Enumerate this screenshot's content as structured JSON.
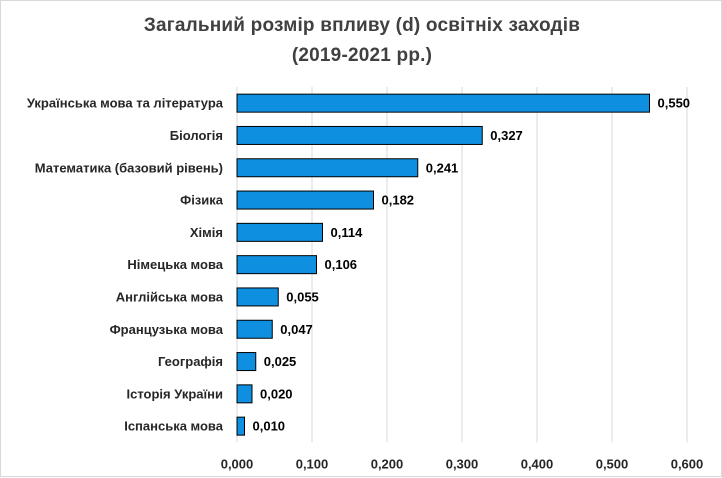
{
  "title_line1": "Загальний розмір впливу (d) освітніх заходів",
  "title_line2": "(2019-2021 рр.)",
  "colors": {
    "bar_fill": "#0f8fe0",
    "bar_stroke": "#000000",
    "gridline": "#d9d9d9"
  },
  "chart_data": {
    "type": "bar",
    "orientation": "horizontal",
    "title": "Загальний розмір впливу (d) освітніх заходів (2019-2021 рр.)",
    "xlabel": "",
    "ylabel": "",
    "xlim": [
      0,
      0.6
    ],
    "ticks": [
      "0,000",
      "0,100",
      "0,200",
      "0,300",
      "0,400",
      "0,500",
      "0,600"
    ],
    "tick_values": [
      0,
      0.1,
      0.2,
      0.3,
      0.4,
      0.5,
      0.6
    ],
    "grid": true,
    "categories": [
      "Українська мова та література",
      "Біологія",
      "Математика (базовий рівень)",
      "Фізика",
      "Хімія",
      "Німецька мова",
      "Англійська мова",
      "Французька мова",
      "Географія",
      "Історія України",
      "Іспанська мова"
    ],
    "values": [
      0.55,
      0.327,
      0.241,
      0.182,
      0.114,
      0.106,
      0.055,
      0.047,
      0.025,
      0.02,
      0.01
    ],
    "value_labels": [
      "0,550",
      "0,327",
      "0,241",
      "0,182",
      "0,114",
      "0,106",
      "0,055",
      "0,047",
      "0,025",
      "0,020",
      "0,010"
    ]
  }
}
